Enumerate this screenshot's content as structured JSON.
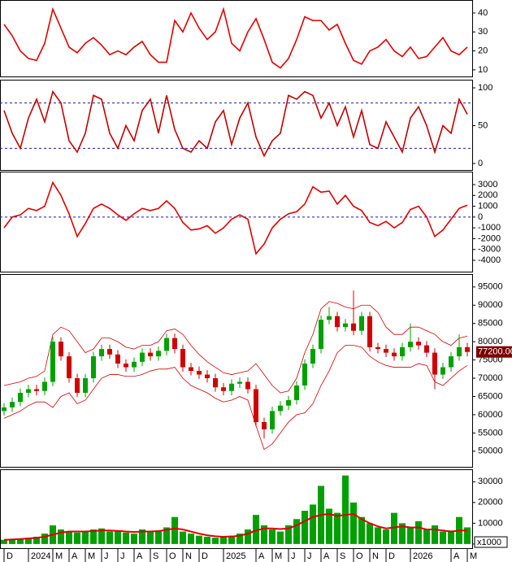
{
  "chart_data": [
    {
      "type": "line",
      "ylim": [
        6.1,
        46.4
      ],
      "yticks": [
        10,
        20,
        30,
        40
      ],
      "series": [
        {
          "color": "#e00000",
          "values": [
            34,
            28,
            20,
            16,
            15,
            24,
            42,
            32,
            22,
            19,
            24,
            27,
            23,
            18,
            20,
            18,
            22,
            25,
            18,
            14,
            14,
            36,
            30,
            40,
            32,
            26,
            30,
            42,
            24,
            20,
            30,
            37,
            26,
            14,
            11,
            16,
            26,
            38,
            36,
            36,
            31,
            34,
            24,
            15,
            13,
            20,
            22,
            26,
            20,
            17,
            22,
            16,
            17,
            22,
            27,
            20,
            18,
            22
          ]
        }
      ]
    },
    {
      "type": "line",
      "ylim": [
        -9.7,
        109.7
      ],
      "yticks": [
        0,
        50,
        100
      ],
      "levels": [
        20,
        80
      ],
      "series": [
        {
          "color": "#c00000",
          "values": [
            70,
            40,
            20,
            60,
            85,
            55,
            95,
            80,
            30,
            15,
            40,
            90,
            85,
            40,
            20,
            50,
            30,
            70,
            85,
            40,
            90,
            45,
            20,
            15,
            30,
            20,
            55,
            70,
            25,
            60,
            80,
            35,
            10,
            30,
            40,
            90,
            85,
            95,
            90,
            60,
            80,
            50,
            75,
            35,
            70,
            25,
            20,
            55,
            35,
            15,
            60,
            75,
            50,
            15,
            50,
            40,
            85,
            65
          ]
        }
      ]
    },
    {
      "type": "line",
      "ylim": [
        -5130,
        4130
      ],
      "yticks": [
        3000,
        2000,
        1000,
        0,
        -1000,
        -2000,
        -3000,
        -4000
      ],
      "levels": [
        0
      ],
      "series": [
        {
          "color": "#e00000",
          "values": [
            -1000,
            0,
            200,
            800,
            600,
            1000,
            3200,
            2000,
            300,
            -1800,
            -600,
            800,
            1200,
            800,
            200,
            -300,
            300,
            800,
            600,
            800,
            1500,
            800,
            -500,
            -1200,
            -1100,
            -800,
            -1500,
            -1000,
            -200,
            200,
            -200,
            -3400,
            -2500,
            -1000,
            -200,
            300,
            500,
            1200,
            2800,
            2300,
            2400,
            1200,
            2000,
            1000,
            600,
            -500,
            -800,
            -400,
            -1000,
            -500,
            700,
            1000,
            0,
            -1800,
            -1200,
            -200,
            800,
            1100
          ]
        }
      ]
    },
    {
      "type": "candlestick",
      "ylim": [
        45500,
        98300
      ],
      "yticks": [
        50000,
        55000,
        60000,
        65000,
        70000,
        75000,
        80000,
        85000,
        90000,
        95000
      ],
      "up_color": "#00a000",
      "down_color": "#d00000",
      "open": [
        61000,
        62000,
        63500,
        66000,
        67000,
        66500,
        69000,
        80000,
        76000,
        70000,
        66000,
        70000,
        76000,
        78000,
        76500,
        74000,
        73000,
        74500,
        77000,
        76000,
        77500,
        81000,
        78000,
        73000,
        72000,
        71000,
        70000,
        67500,
        66500,
        68500,
        69000,
        67000,
        58000,
        56000,
        61000,
        62500,
        64000,
        68000,
        74000,
        78000,
        86000,
        87000,
        84000,
        85000,
        83000,
        87000,
        78500,
        78000,
        77000,
        76000,
        78500,
        80000,
        79000,
        77000,
        71000,
        73000,
        76000,
        78500
      ],
      "high": [
        63200,
        64700,
        67200,
        68200,
        68200,
        70200,
        81200,
        81200,
        77200,
        71200,
        71200,
        77200,
        79200,
        79200,
        77700,
        75200,
        75700,
        78200,
        78200,
        78700,
        82200,
        82200,
        79200,
        74200,
        73200,
        72200,
        71200,
        68700,
        69700,
        70200,
        70200,
        68200,
        59200,
        62200,
        63700,
        65200,
        69200,
        75200,
        79200,
        87200,
        89500,
        88200,
        86200,
        94000,
        88200,
        88200,
        79700,
        79200,
        78200,
        79700,
        85000,
        81200,
        80200,
        78200,
        74200,
        77200,
        82000,
        79700
      ],
      "low": [
        59800,
        60800,
        62300,
        64800,
        65300,
        65300,
        67800,
        74800,
        68800,
        64800,
        64800,
        68800,
        74800,
        75300,
        72800,
        71800,
        71800,
        73300,
        74800,
        74800,
        76300,
        76800,
        71800,
        70800,
        69800,
        68800,
        66300,
        65300,
        65300,
        67300,
        65800,
        56800,
        53500,
        54800,
        59800,
        61300,
        62800,
        66800,
        72800,
        76800,
        84800,
        82800,
        82800,
        81800,
        81800,
        77300,
        76800,
        75800,
        74800,
        74800,
        77300,
        77800,
        75800,
        67000,
        69800,
        71800,
        74800,
        76000
      ],
      "close": [
        62000,
        63500,
        66000,
        67000,
        66500,
        69000,
        80000,
        76000,
        70000,
        66000,
        70000,
        76000,
        78000,
        76500,
        74000,
        73000,
        74500,
        77000,
        76000,
        77500,
        81000,
        78000,
        73000,
        72000,
        71000,
        70000,
        67500,
        66500,
        68500,
        69000,
        67000,
        58000,
        56000,
        61000,
        62500,
        64000,
        68000,
        74000,
        78000,
        86000,
        87000,
        84000,
        85000,
        83000,
        87000,
        78500,
        78000,
        77000,
        76000,
        78500,
        80000,
        79000,
        77000,
        71000,
        73000,
        76000,
        78500,
        77200
      ],
      "bands": {
        "color": "#d00000",
        "upper": [
          68000,
          68500,
          69000,
          70000,
          70500,
          72000,
          82000,
          84000,
          83000,
          80000,
          77000,
          78000,
          81000,
          81000,
          80000,
          78500,
          78000,
          79000,
          79000,
          80000,
          83000,
          83500,
          82000,
          79000,
          76500,
          74500,
          73000,
          71500,
          71000,
          71500,
          72000,
          74000,
          71000,
          68000,
          66000,
          66500,
          70000,
          77000,
          82000,
          89000,
          91000,
          90500,
          89500,
          89000,
          90000,
          90000,
          88000,
          84000,
          82000,
          82000,
          84000,
          84000,
          83000,
          82000,
          80000,
          79000,
          81000,
          81500
        ],
        "lower": [
          59000,
          60000,
          61000,
          62500,
          63500,
          63500,
          62000,
          65000,
          66000,
          63000,
          64000,
          67000,
          70000,
          71000,
          71000,
          70500,
          70500,
          71000,
          72000,
          72500,
          72500,
          73000,
          70000,
          68000,
          67000,
          66000,
          64500,
          63500,
          64000,
          65000,
          64000,
          57000,
          50500,
          52000,
          55000,
          58000,
          60000,
          60500,
          63000,
          68000,
          72000,
          77000,
          79000,
          79000,
          78500,
          76000,
          74500,
          73500,
          73000,
          73000,
          73000,
          74000,
          73500,
          69000,
          68000,
          70000,
          72000,
          73500
        ]
      },
      "last_price": {
        "value": 77200,
        "label": "77200.00"
      }
    },
    {
      "type": "bar",
      "ylim": [
        -2400,
        35600
      ],
      "yticks": [
        0,
        10000,
        20000,
        30000
      ],
      "color": "#00a000",
      "unit_label": "x1000",
      "values": [
        2000,
        2500,
        2500,
        3000,
        3500,
        5000,
        9000,
        7000,
        6000,
        5500,
        6000,
        7000,
        7500,
        6000,
        6500,
        5500,
        5000,
        7000,
        6000,
        6500,
        8000,
        13000,
        6000,
        5000,
        4000,
        3500,
        3000,
        3500,
        4000,
        5000,
        7000,
        14000,
        9000,
        7000,
        6000,
        9000,
        12000,
        16000,
        19000,
        28000,
        17000,
        15000,
        33000,
        20000,
        13000,
        10000,
        8000,
        7000,
        15000,
        10000,
        8000,
        11000,
        7000,
        9000,
        6000,
        6500,
        13000,
        8000
      ],
      "ma": {
        "color": "#e00000",
        "values": [
          2000,
          2200,
          2400,
          2700,
          3000,
          3500,
          4500,
          5500,
          6000,
          6000,
          6000,
          6200,
          6500,
          6500,
          6300,
          6000,
          5800,
          6000,
          6000,
          6200,
          6800,
          7500,
          7000,
          6000,
          5000,
          4200,
          3700,
          3500,
          3600,
          4000,
          5000,
          6500,
          7500,
          7500,
          7200,
          7500,
          9000,
          11000,
          13000,
          14000,
          14500,
          13500,
          14000,
          14500,
          12000,
          10000,
          8500,
          7500,
          8000,
          8500,
          8000,
          8000,
          7000,
          7000,
          6500,
          6000,
          6500,
          6500
        ]
      },
      "categories": [
        "D",
        null,
        null,
        "2024",
        null,
        null,
        "M",
        null,
        "A",
        null,
        "M",
        null,
        "J",
        null,
        "J",
        null,
        "A",
        null,
        "S",
        null,
        "O",
        null,
        "N",
        null,
        "D",
        null,
        null,
        "2025",
        null,
        null,
        null,
        "A",
        null,
        "M",
        null,
        "J",
        null,
        "J",
        null,
        "A",
        null,
        "S",
        null,
        "O",
        null,
        "N",
        null,
        "D",
        null,
        null,
        "2026",
        null,
        null,
        null,
        null,
        "A",
        null,
        "M"
      ]
    }
  ]
}
